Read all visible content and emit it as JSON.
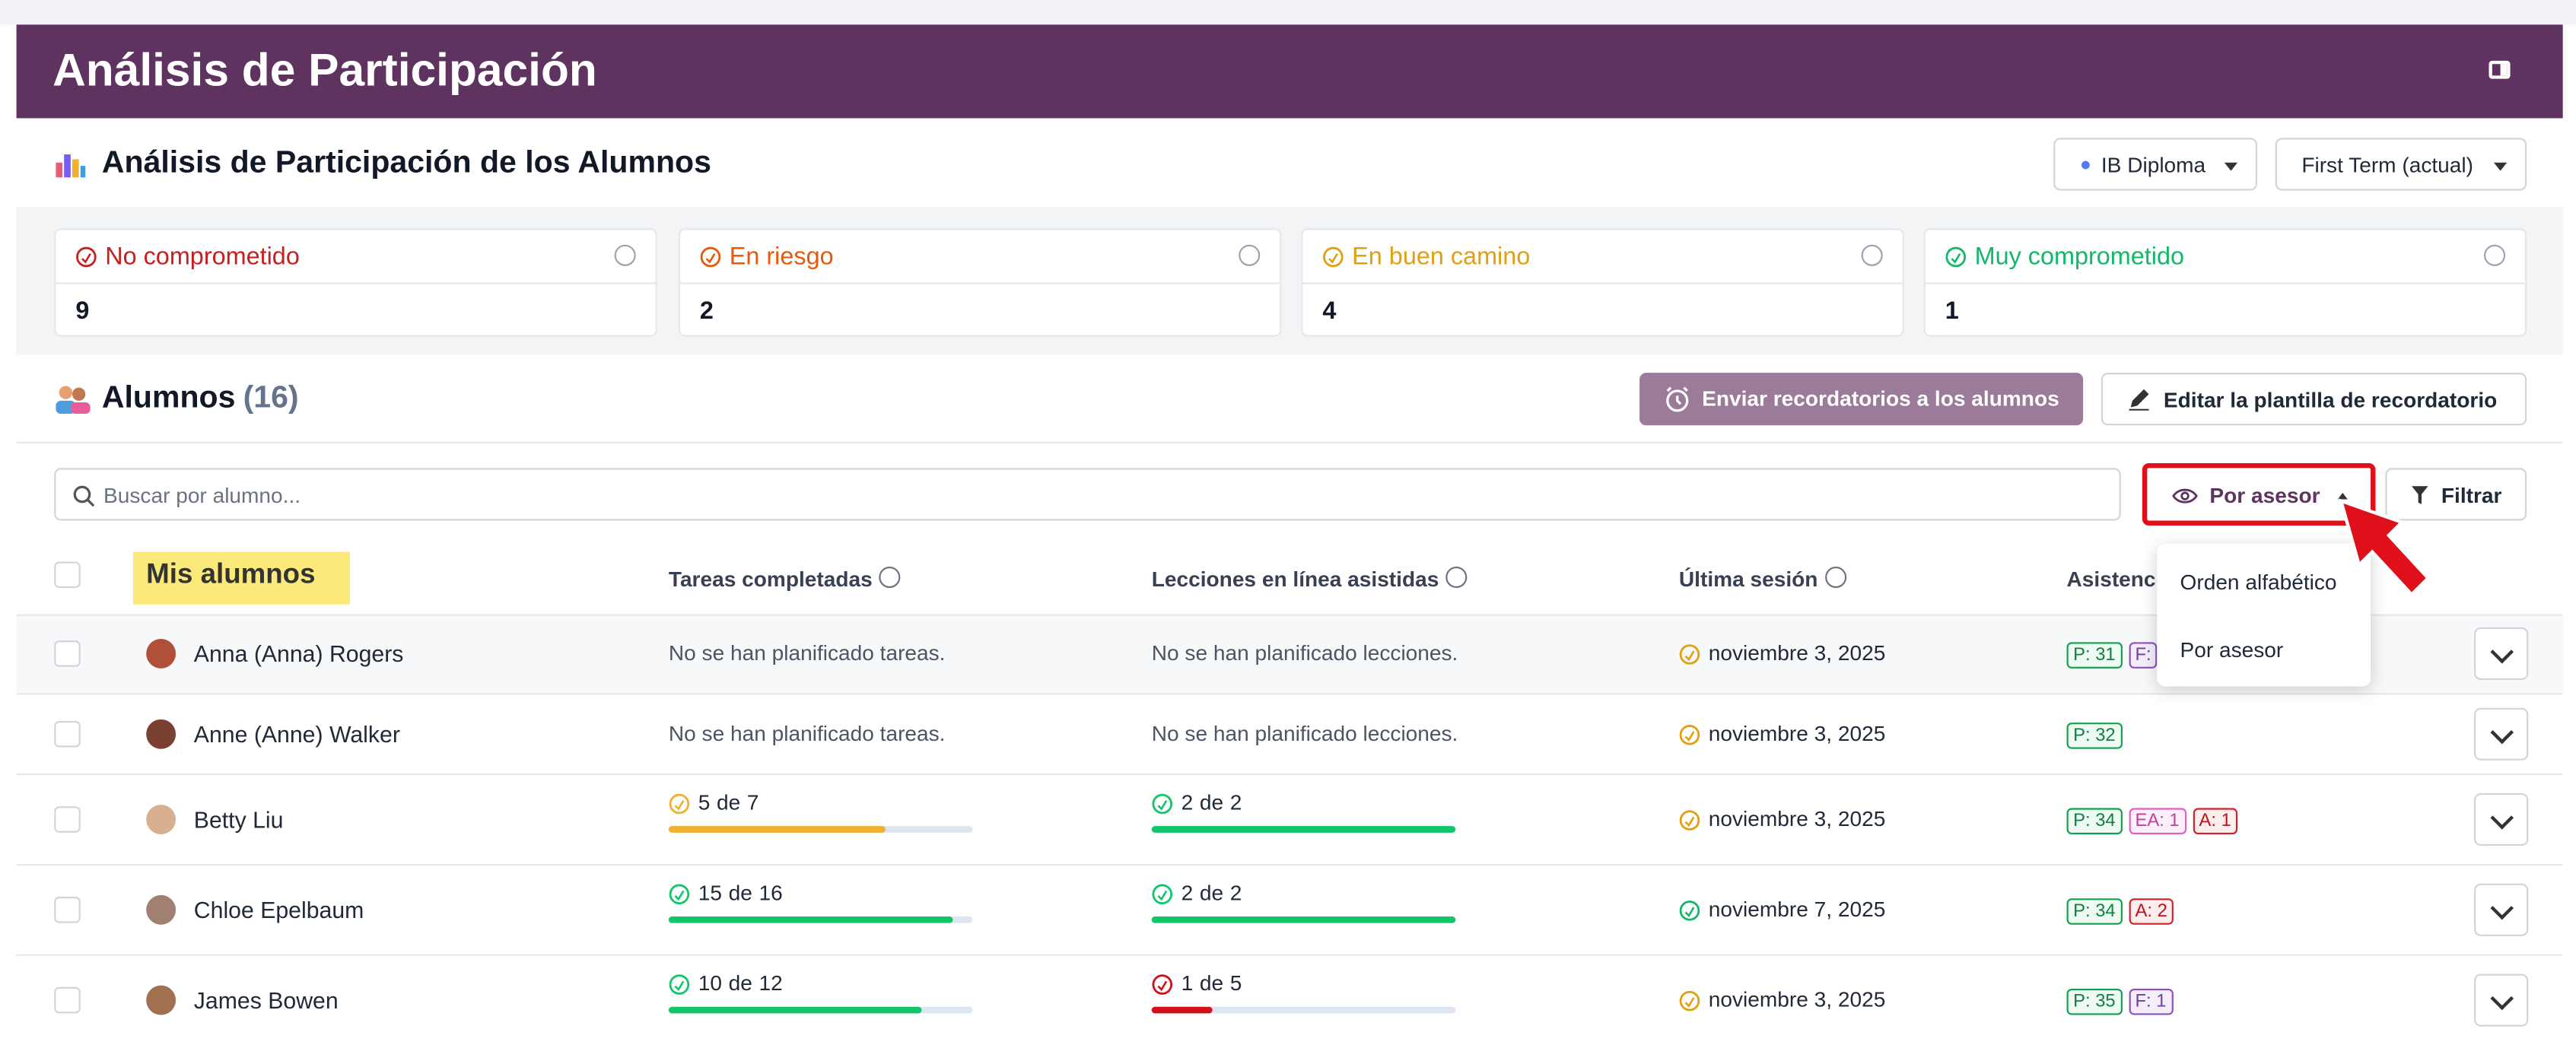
{
  "header": {
    "title": "Análisis de Participación"
  },
  "section": {
    "title": "Análisis de Participación de los Alumnos",
    "program": "IB Diploma",
    "term": "First Term (actual)"
  },
  "status_cards": [
    {
      "label": "No comprometido",
      "count": "9",
      "color": "#c81e1e"
    },
    {
      "label": "En riesgo",
      "count": "2",
      "color": "#e8590c"
    },
    {
      "label": "En buen camino",
      "count": "4",
      "color": "#e0a010"
    },
    {
      "label": "Muy comprometido",
      "count": "1",
      "color": "#12b76a"
    }
  ],
  "students": {
    "title": "Alumnos",
    "count": "(16)",
    "send_button": "Enviar recordatorios a los alumnos",
    "edit_button": "Editar la plantilla de recordatorio",
    "search_placeholder": "Buscar por alumno...",
    "sort_button": "Por asesor",
    "filter_button": "Filtrar",
    "sort_menu": [
      "Orden alfabético",
      "Por asesor"
    ],
    "group_label": "Mis alumnos"
  },
  "table": {
    "headers": [
      "Tareas completadas",
      "Lecciones en línea asistidas",
      "Última sesión",
      "Asistencia"
    ],
    "of_word": "de",
    "rows": [
      {
        "name": "Anna (Anna) Rogers",
        "tasks": {
          "text": "No se han planificado tareas."
        },
        "lessons": {
          "text": "No se han planificado lecciones."
        },
        "session": "noviembre 3, 2025",
        "session_color": "#e0a010",
        "badges": [
          {
            "text": "P: 31",
            "kind": "P"
          },
          {
            "text": "F:",
            "kind": "F"
          }
        ]
      },
      {
        "name": "Anne (Anne) Walker",
        "tasks": {
          "text": "No se han planificado tareas."
        },
        "lessons": {
          "text": "No se han planificado lecciones."
        },
        "session": "noviembre 3, 2025",
        "session_color": "#e0a010",
        "badges": [
          {
            "text": "P: 32",
            "kind": "P"
          }
        ]
      },
      {
        "name": "Betty Liu",
        "tasks": {
          "done": 5,
          "total": 7,
          "color": "#f0b030"
        },
        "lessons": {
          "done": 2,
          "total": 2,
          "color": "#12c46a"
        },
        "session": "noviembre 3, 2025",
        "session_color": "#e0a010",
        "badges": [
          {
            "text": "P: 34",
            "kind": "P"
          },
          {
            "text": "EA: 1",
            "kind": "EA"
          },
          {
            "text": "A: 1",
            "kind": "A"
          }
        ]
      },
      {
        "name": "Chloe Epelbaum",
        "tasks": {
          "done": 15,
          "total": 16,
          "color": "#12c46a"
        },
        "lessons": {
          "done": 2,
          "total": 2,
          "color": "#12c46a"
        },
        "session": "noviembre 7, 2025",
        "session_color": "#12b76a",
        "badges": [
          {
            "text": "P: 34",
            "kind": "P"
          },
          {
            "text": "A: 2",
            "kind": "A"
          }
        ]
      },
      {
        "name": "James Bowen",
        "tasks": {
          "done": 10,
          "total": 12,
          "color": "#12c46a"
        },
        "lessons": {
          "done": 1,
          "total": 5,
          "color": "#d0101a"
        },
        "session": "noviembre 3, 2025",
        "session_color": "#e0a010",
        "badges": [
          {
            "text": "P: 35",
            "kind": "P"
          },
          {
            "text": "F: 1",
            "kind": "F"
          }
        ]
      }
    ]
  }
}
